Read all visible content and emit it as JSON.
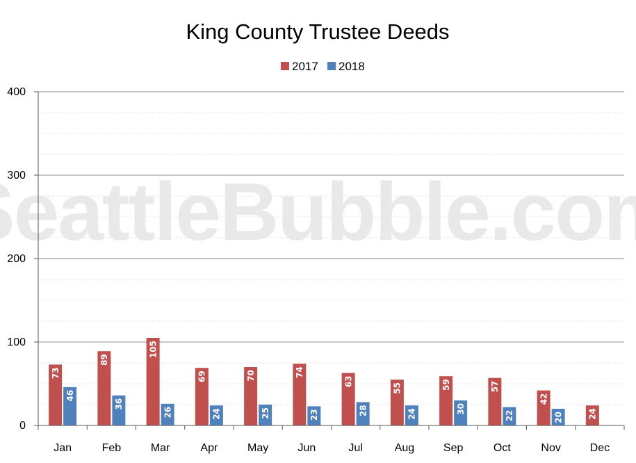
{
  "watermark": "SeattleBubble.com",
  "chart_data": {
    "type": "bar",
    "title": "King County Trustee Deeds",
    "xlabel": "",
    "ylabel": "",
    "categories": [
      "Jan",
      "Feb",
      "Mar",
      "Apr",
      "May",
      "Jun",
      "Jul",
      "Aug",
      "Sep",
      "Oct",
      "Nov",
      "Dec"
    ],
    "series": [
      {
        "name": "2017",
        "color": "#c0504d",
        "values": [
          73,
          89,
          105,
          69,
          70,
          74,
          63,
          55,
          59,
          57,
          42,
          24
        ]
      },
      {
        "name": "2018",
        "color": "#4f81bd",
        "values": [
          46,
          36,
          26,
          24,
          25,
          23,
          28,
          24,
          30,
          22,
          20,
          null
        ]
      }
    ],
    "ylim": [
      0,
      400
    ],
    "yticks": [
      0,
      100,
      200,
      300,
      400
    ],
    "grid": true,
    "legend": "top-center",
    "data_labels": true
  }
}
